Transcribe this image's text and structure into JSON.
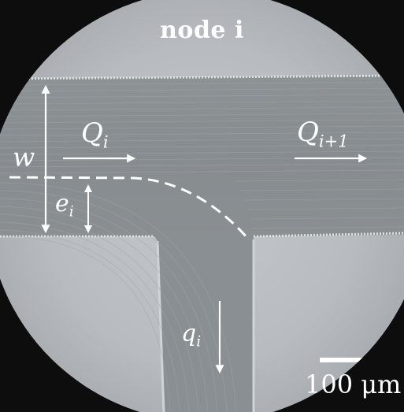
{
  "figure": {
    "title": "node i",
    "labels": {
      "width": "w",
      "flow_in": {
        "base": "Q",
        "sub": "i"
      },
      "flow_out": {
        "base": "Q",
        "sub": "i+1"
      },
      "offset": {
        "base": "e",
        "sub": "i"
      },
      "branch_flow": {
        "base": "q",
        "sub": "i"
      }
    },
    "scale_bar": {
      "label": "100 μm"
    },
    "colors": {
      "background": "#b9bdc1",
      "channel": "#8b9093",
      "annotation": "#ffffff",
      "vignette": "#0d0d0d"
    }
  }
}
